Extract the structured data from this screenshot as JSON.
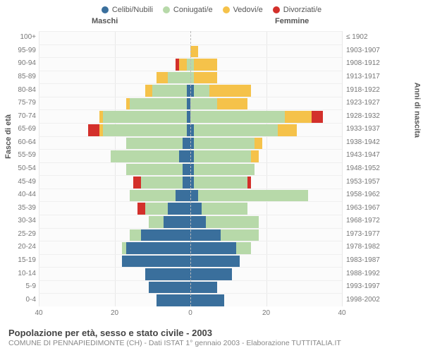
{
  "chart": {
    "type": "population-pyramid-stacked",
    "background": "#fbfbfb",
    "grid_color": "#e8e8e8",
    "centerline_color": "#bbbbbb",
    "categories": [
      {
        "name": "celibi",
        "label": "Celibi/Nubili",
        "color": "#3a6f9c"
      },
      {
        "name": "coniugati",
        "label": "Coniugati/e",
        "color": "#b7d9a9"
      },
      {
        "name": "vedovi",
        "label": "Vedovi/e",
        "color": "#f5c24a"
      },
      {
        "name": "divorziati",
        "label": "Divorziati/e",
        "color": "#d3302b"
      }
    ],
    "male_header": "Maschi",
    "female_header": "Femmine",
    "y_left_title": "Fasce di età",
    "y_right_title": "Anni di nascita",
    "xlim": 40,
    "xticks": [
      40,
      20,
      0,
      20,
      40
    ],
    "rows": [
      {
        "age": "100+",
        "year": "≤ 1902",
        "m": [
          0,
          0,
          0,
          0
        ],
        "f": [
          0,
          0,
          0,
          0
        ]
      },
      {
        "age": "95-99",
        "year": "1903-1907",
        "m": [
          0,
          0,
          0,
          0
        ],
        "f": [
          0,
          0,
          2,
          0
        ]
      },
      {
        "age": "90-94",
        "year": "1908-1912",
        "m": [
          0,
          1,
          2,
          1
        ],
        "f": [
          0,
          1,
          6,
          0
        ]
      },
      {
        "age": "85-89",
        "year": "1913-1917",
        "m": [
          0,
          6,
          3,
          0
        ],
        "f": [
          0,
          1,
          6,
          0
        ]
      },
      {
        "age": "80-84",
        "year": "1918-1922",
        "m": [
          1,
          9,
          2,
          0
        ],
        "f": [
          1,
          4,
          11,
          0
        ]
      },
      {
        "age": "75-79",
        "year": "1923-1927",
        "m": [
          1,
          15,
          1,
          0
        ],
        "f": [
          0,
          7,
          8,
          0
        ]
      },
      {
        "age": "70-74",
        "year": "1928-1932",
        "m": [
          1,
          22,
          1,
          0
        ],
        "f": [
          0,
          25,
          7,
          3
        ]
      },
      {
        "age": "65-69",
        "year": "1933-1937",
        "m": [
          1,
          22,
          1,
          3
        ],
        "f": [
          1,
          22,
          5,
          0
        ]
      },
      {
        "age": "60-64",
        "year": "1938-1942",
        "m": [
          2,
          15,
          0,
          0
        ],
        "f": [
          1,
          16,
          2,
          0
        ]
      },
      {
        "age": "55-59",
        "year": "1943-1947",
        "m": [
          3,
          18,
          0,
          0
        ],
        "f": [
          1,
          15,
          2,
          0
        ]
      },
      {
        "age": "50-54",
        "year": "1948-1952",
        "m": [
          2,
          15,
          0,
          0
        ],
        "f": [
          1,
          16,
          0,
          0
        ]
      },
      {
        "age": "45-49",
        "year": "1953-1957",
        "m": [
          2,
          11,
          0,
          2
        ],
        "f": [
          1,
          14,
          0,
          1
        ]
      },
      {
        "age": "40-44",
        "year": "1958-1962",
        "m": [
          4,
          12,
          0,
          0
        ],
        "f": [
          2,
          29,
          0,
          0
        ]
      },
      {
        "age": "35-39",
        "year": "1963-1967",
        "m": [
          6,
          6,
          0,
          2
        ],
        "f": [
          3,
          12,
          0,
          0
        ]
      },
      {
        "age": "30-34",
        "year": "1968-1972",
        "m": [
          7,
          4,
          0,
          0
        ],
        "f": [
          4,
          14,
          0,
          0
        ]
      },
      {
        "age": "25-29",
        "year": "1973-1977",
        "m": [
          13,
          3,
          0,
          0
        ],
        "f": [
          8,
          10,
          0,
          0
        ]
      },
      {
        "age": "20-24",
        "year": "1978-1982",
        "m": [
          17,
          1,
          0,
          0
        ],
        "f": [
          12,
          4,
          0,
          0
        ]
      },
      {
        "age": "15-19",
        "year": "1983-1987",
        "m": [
          18,
          0,
          0,
          0
        ],
        "f": [
          13,
          0,
          0,
          0
        ]
      },
      {
        "age": "10-14",
        "year": "1988-1992",
        "m": [
          12,
          0,
          0,
          0
        ],
        "f": [
          11,
          0,
          0,
          0
        ]
      },
      {
        "age": "5-9",
        "year": "1993-1997",
        "m": [
          11,
          0,
          0,
          0
        ],
        "f": [
          7,
          0,
          0,
          0
        ]
      },
      {
        "age": "0-4",
        "year": "1998-2002",
        "m": [
          9,
          0,
          0,
          0
        ],
        "f": [
          9,
          0,
          0,
          0
        ]
      }
    ]
  },
  "footer": {
    "title": "Popolazione per età, sesso e stato civile - 2003",
    "subtitle": "COMUNE DI PENNAPIEDIMONTE (CH) - Dati ISTAT 1° gennaio 2003 - Elaborazione TUTTITALIA.IT"
  }
}
